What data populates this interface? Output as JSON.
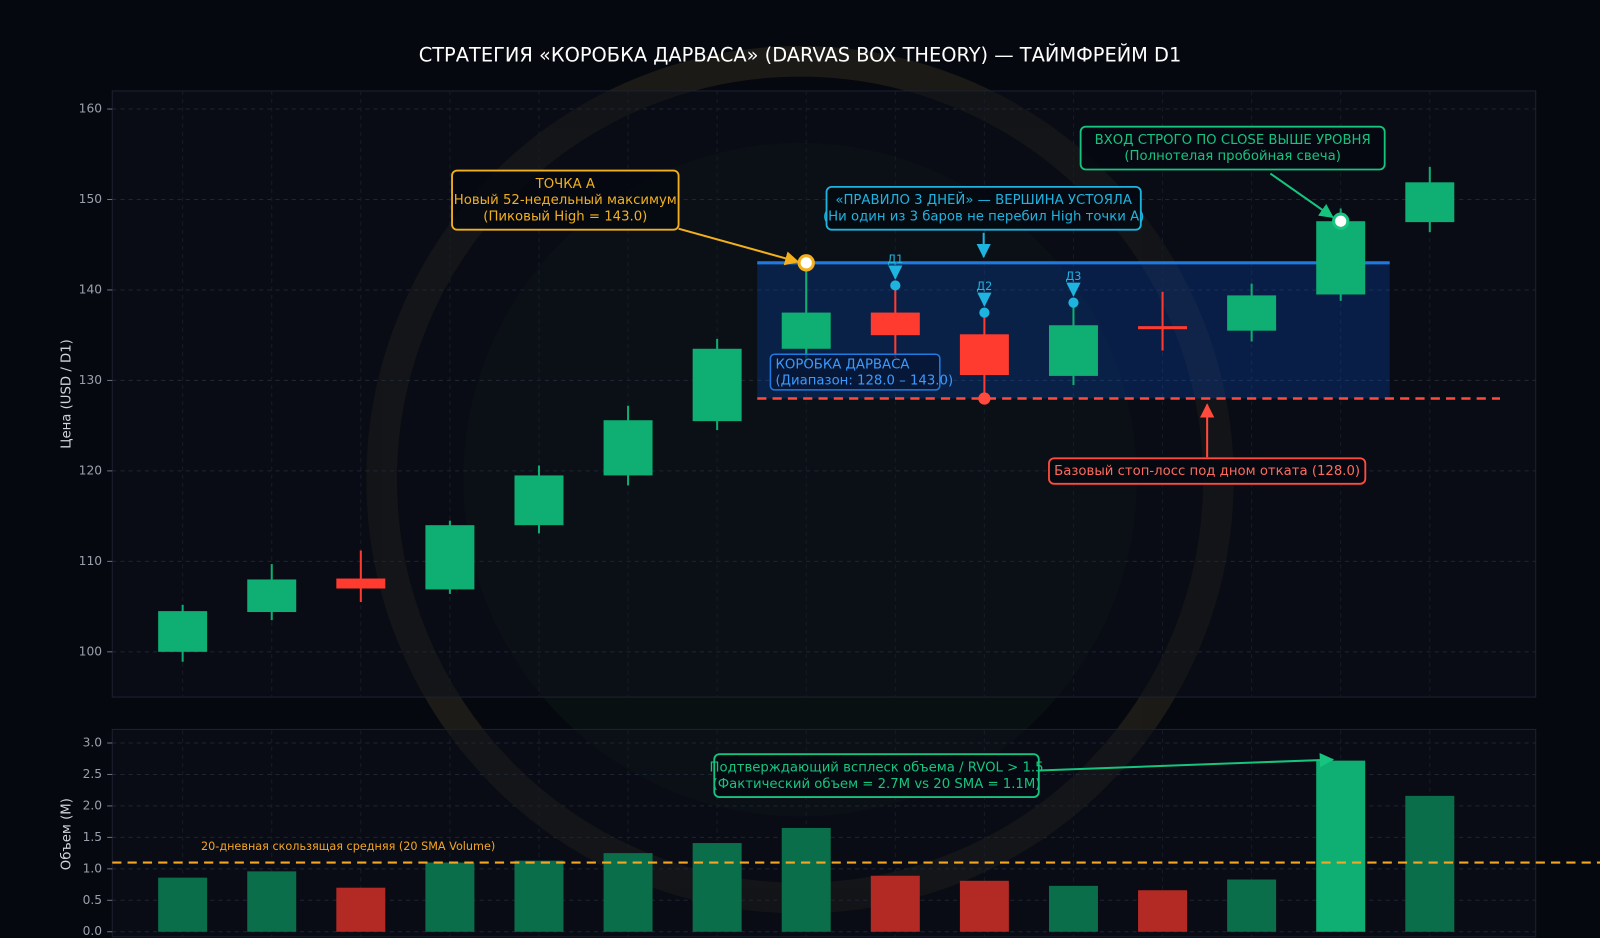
{
  "chart_data": [
    {
      "type": "candlestick",
      "title": "СТРАТЕГИЯ «КОРОБКА ДАРВАСА» (DARVAS BOX THEORY) — ТАЙМФРЕЙМ D1",
      "y_label": "Цена (USD / D1)",
      "categories": [
        null,
        null,
        null,
        null,
        null,
        null,
        null,
        null,
        null,
        null,
        null,
        null,
        null,
        null,
        null
      ],
      "open": [
        100.0,
        104.4,
        108.1,
        106.9,
        114.0,
        119.5,
        125.5,
        133.5,
        137.5,
        135.1,
        130.5,
        136.0,
        135.5,
        139.5,
        147.5
      ],
      "high": [
        105.2,
        109.7,
        111.2,
        114.5,
        120.6,
        127.2,
        134.6,
        143.0,
        140.5,
        137.5,
        138.6,
        139.8,
        140.7,
        149.0,
        153.6
      ],
      "low": [
        98.9,
        103.5,
        105.5,
        106.4,
        113.1,
        118.4,
        124.5,
        132.0,
        132.5,
        128.0,
        129.5,
        133.3,
        134.3,
        138.8,
        146.4
      ],
      "close": [
        104.5,
        108.0,
        107.0,
        114.0,
        119.5,
        125.6,
        133.5,
        137.5,
        135.0,
        130.6,
        136.1,
        135.8,
        139.4,
        147.6,
        151.9
      ],
      "up_color": "#0fae72",
      "down_color": "#ff3b30",
      "ylim": [
        95,
        162
      ],
      "yticks": [
        100,
        110,
        120,
        130,
        140,
        150,
        160
      ],
      "grid": true,
      "box": {
        "top": 143,
        "bottom": 128,
        "color": "#1f7ae0",
        "label": [
          "КОРОБКА ДАРВАСА",
          "(Диапазон: 128.0 – 143.0)"
        ]
      },
      "stop": {
        "value": 128,
        "color": "#ff4a3d",
        "label": "Базовый стоп-лосс под дном отката (128.0)"
      },
      "day_labels": [
        "Д1",
        "Д2",
        "Д3"
      ],
      "annotations": [
        {
          "lines": [
            "ТОЧКА А",
            "Новый 52-недельный максимум",
            "(Пиковый High = 143.0)"
          ],
          "color": "#f2b01e"
        },
        {
          "lines": [
            "«ПРАВИЛО 3 ДНЕЙ» — ВЕРШИНА УСТОЯЛА",
            "(Ни один из 3 баров не перебил High точки А)"
          ],
          "color": "#1fb4e0"
        },
        {
          "lines": [
            "ВХОД СТРОГО ПО CLOSE ВЫШЕ УРОВНЯ",
            "(Полнотелая пробойная свеча)"
          ],
          "color": "#16c47f"
        }
      ]
    },
    {
      "type": "bar",
      "y_label": "Объем (M)",
      "categories": [
        null,
        null,
        null,
        null,
        null,
        null,
        null,
        null,
        null,
        null,
        null,
        null,
        null,
        null,
        null
      ],
      "values": [
        0.86,
        0.96,
        0.7,
        1.1,
        1.13,
        1.25,
        1.41,
        1.65,
        0.89,
        0.81,
        0.73,
        0.66,
        0.83,
        2.72,
        2.16
      ],
      "colors": [
        "#0b6e4a",
        "#0b6e4a",
        "#b32a25",
        "#0b6e4a",
        "#0b6e4a",
        "#0b6e4a",
        "#0b6e4a",
        "#0b6e4a",
        "#b32a25",
        "#b32a25",
        "#0b6e4a",
        "#b32a25",
        "#0b6e4a",
        "#0fae72",
        "#0b6e4a"
      ],
      "ylim": [
        0,
        3.2
      ],
      "yticks": [
        {
          "value": 0,
          "label": "0.0"
        },
        0.5,
        {
          "value": 1,
          "label": "1.0"
        },
        1.5,
        {
          "value": 2,
          "label": "2.0"
        },
        2.5,
        {
          "value": 3,
          "label": "3.0"
        }
      ],
      "grid": true,
      "sma": {
        "value": 1.1,
        "color": "#f5a623",
        "label": "20-дневная скользящая средняя (20 SMA Volume)"
      },
      "annotations": [
        {
          "lines": [
            "Подтверждающий всплеск объема / RVOL > 1.5",
            "(Фактический объем = 2.7M vs 20 SMA = 1.1M)"
          ],
          "color": "#16c47f"
        }
      ]
    }
  ]
}
